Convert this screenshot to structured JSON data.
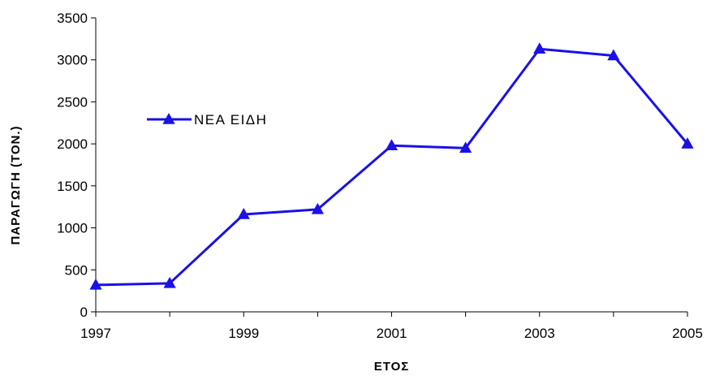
{
  "chart_data": {
    "type": "line",
    "title": "",
    "xlabel": "ΕΤΟΣ",
    "ylabel": "ΠΑΡΑΓΩΓΗ (ΤΟΝ.)",
    "x": [
      1997,
      1998,
      1999,
      2000,
      2001,
      2002,
      2003,
      2004,
      2005
    ],
    "x_tick_labels": [
      "1997",
      "1999",
      "2001",
      "2003",
      "2005"
    ],
    "y_tick_labels": [
      "0",
      "500",
      "1000",
      "1500",
      "2000",
      "2500",
      "3000",
      "3500"
    ],
    "ylim": [
      0,
      3500
    ],
    "xlim": [
      1997,
      2005
    ],
    "grid": false,
    "legend_position": "upper-left",
    "marker": "triangle",
    "series": [
      {
        "name": "ΝΕΑ ΕΙΔΗ",
        "color": "#1a10e8",
        "values": [
          320,
          340,
          1160,
          1220,
          1980,
          1950,
          3130,
          3050,
          2000
        ]
      }
    ]
  }
}
